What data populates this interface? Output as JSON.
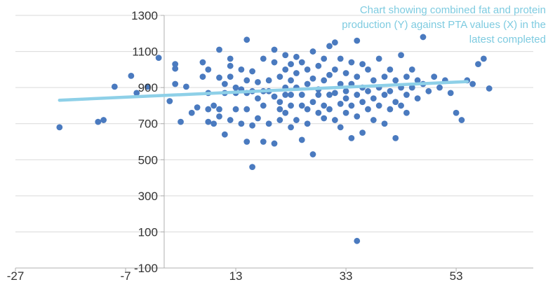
{
  "colors": {
    "points": "#4a7abf",
    "trend": "#8ed0e8",
    "grid": "#d9d9d9",
    "axis": "#b0b0b0",
    "note": "#7ecbe0"
  },
  "annotation": "Chart showing combined fat and protein production (Y) against PTA values (X) in the latest completed",
  "chart_data": {
    "type": "scatter",
    "title": "",
    "xlabel": "",
    "ylabel": "",
    "xlim": [
      -27,
      67
    ],
    "ylim": [
      -100,
      1300
    ],
    "x_ticks": [
      -27,
      -7,
      13,
      33,
      53
    ],
    "y_ticks": [
      -100,
      100,
      300,
      500,
      700,
      900,
      1100,
      1300
    ],
    "grid": "horizontal",
    "legend": "none",
    "trendline": {
      "x": [
        -19,
        55
      ],
      "y": [
        830,
        933
      ]
    },
    "series": [
      {
        "points": [
          [
            -19,
            680
          ],
          [
            -12,
            710
          ],
          [
            -11,
            720
          ],
          [
            -9,
            905
          ],
          [
            -6,
            965
          ],
          [
            -5,
            870
          ],
          [
            -3,
            905
          ],
          [
            -1,
            1065
          ],
          [
            1,
            825
          ],
          [
            2,
            1030
          ],
          [
            2,
            1005
          ],
          [
            2,
            920
          ],
          [
            3,
            710
          ],
          [
            4,
            905
          ],
          [
            5,
            760
          ],
          [
            6,
            790
          ],
          [
            7,
            960
          ],
          [
            7,
            1040
          ],
          [
            8,
            710
          ],
          [
            8,
            780
          ],
          [
            8,
            1000
          ],
          [
            8,
            870
          ],
          [
            9,
            700
          ],
          [
            9,
            800
          ],
          [
            10,
            955
          ],
          [
            10,
            1110
          ],
          [
            10,
            740
          ],
          [
            10,
            780
          ],
          [
            11,
            870
          ],
          [
            11,
            640
          ],
          [
            11,
            920
          ],
          [
            12,
            720
          ],
          [
            12,
            960
          ],
          [
            12,
            1020
          ],
          [
            12,
            1060
          ],
          [
            13,
            900
          ],
          [
            13,
            870
          ],
          [
            13,
            780
          ],
          [
            14,
            700
          ],
          [
            14,
            890
          ],
          [
            14,
            1000
          ],
          [
            15,
            600
          ],
          [
            15,
            870
          ],
          [
            15,
            780
          ],
          [
            15,
            1165
          ],
          [
            15,
            940
          ],
          [
            16,
            990
          ],
          [
            16,
            880
          ],
          [
            16,
            460
          ],
          [
            16,
            690
          ],
          [
            17,
            840
          ],
          [
            17,
            930
          ],
          [
            17,
            730
          ],
          [
            18,
            800
          ],
          [
            18,
            600
          ],
          [
            18,
            1060
          ],
          [
            18,
            880
          ],
          [
            19,
            940
          ],
          [
            19,
            880
          ],
          [
            19,
            700
          ],
          [
            20,
            590
          ],
          [
            20,
            850
          ],
          [
            20,
            1110
          ],
          [
            20,
            1040
          ],
          [
            21,
            960
          ],
          [
            21,
            820
          ],
          [
            21,
            720
          ],
          [
            21,
            780
          ],
          [
            22,
            900
          ],
          [
            22,
            1000
          ],
          [
            22,
            1080
          ],
          [
            22,
            860
          ],
          [
            22,
            760
          ],
          [
            23,
            680
          ],
          [
            23,
            860
          ],
          [
            23,
            1030
          ],
          [
            23,
            940
          ],
          [
            23,
            800
          ],
          [
            24,
            1070
          ],
          [
            24,
            980
          ],
          [
            24,
            900
          ],
          [
            24,
            720
          ],
          [
            25,
            610
          ],
          [
            25,
            800
          ],
          [
            25,
            860
          ],
          [
            25,
            1040
          ],
          [
            26,
            920
          ],
          [
            26,
            780
          ],
          [
            26,
            700
          ],
          [
            26,
            1000
          ],
          [
            27,
            1100
          ],
          [
            27,
            950
          ],
          [
            27,
            820
          ],
          [
            27,
            530
          ],
          [
            28,
            890
          ],
          [
            28,
            760
          ],
          [
            28,
            1020
          ],
          [
            28,
            860
          ],
          [
            29,
            730
          ],
          [
            29,
            1060
          ],
          [
            29,
            940
          ],
          [
            29,
            800
          ],
          [
            30,
            1130
          ],
          [
            30,
            970
          ],
          [
            30,
            860
          ],
          [
            30,
            780
          ],
          [
            31,
            1000
          ],
          [
            31,
            870
          ],
          [
            31,
            720
          ],
          [
            31,
            1150
          ],
          [
            32,
            920
          ],
          [
            32,
            810
          ],
          [
            32,
            680
          ],
          [
            32,
            1060
          ],
          [
            33,
            980
          ],
          [
            33,
            880
          ],
          [
            33,
            760
          ],
          [
            33,
            840
          ],
          [
            34,
            1040
          ],
          [
            34,
            920
          ],
          [
            34,
            800
          ],
          [
            34,
            620
          ],
          [
            35,
            960
          ],
          [
            35,
            860
          ],
          [
            35,
            740
          ],
          [
            35,
            1160
          ],
          [
            35,
            50
          ],
          [
            36,
            1030
          ],
          [
            36,
            900
          ],
          [
            36,
            820
          ],
          [
            36,
            650
          ],
          [
            37,
            1000
          ],
          [
            37,
            880
          ],
          [
            37,
            780
          ],
          [
            38,
            940
          ],
          [
            38,
            840
          ],
          [
            38,
            720
          ],
          [
            39,
            1060
          ],
          [
            39,
            900
          ],
          [
            39,
            800
          ],
          [
            40,
            960
          ],
          [
            40,
            860
          ],
          [
            40,
            700
          ],
          [
            41,
            1000
          ],
          [
            41,
            880
          ],
          [
            41,
            780
          ],
          [
            42,
            940
          ],
          [
            42,
            820
          ],
          [
            42,
            620
          ],
          [
            43,
            1080
          ],
          [
            43,
            900
          ],
          [
            43,
            800
          ],
          [
            44,
            960
          ],
          [
            44,
            860
          ],
          [
            44,
            760
          ],
          [
            45,
            1000
          ],
          [
            45,
            900
          ],
          [
            46,
            940
          ],
          [
            46,
            840
          ],
          [
            47,
            1180
          ],
          [
            47,
            920
          ],
          [
            48,
            880
          ],
          [
            49,
            960
          ],
          [
            50,
            900
          ],
          [
            51,
            940
          ],
          [
            52,
            870
          ],
          [
            53,
            760
          ],
          [
            54,
            720
          ],
          [
            55,
            940
          ],
          [
            56,
            920
          ],
          [
            57,
            1030
          ],
          [
            58,
            1060
          ],
          [
            59,
            895
          ]
        ]
      }
    ]
  }
}
